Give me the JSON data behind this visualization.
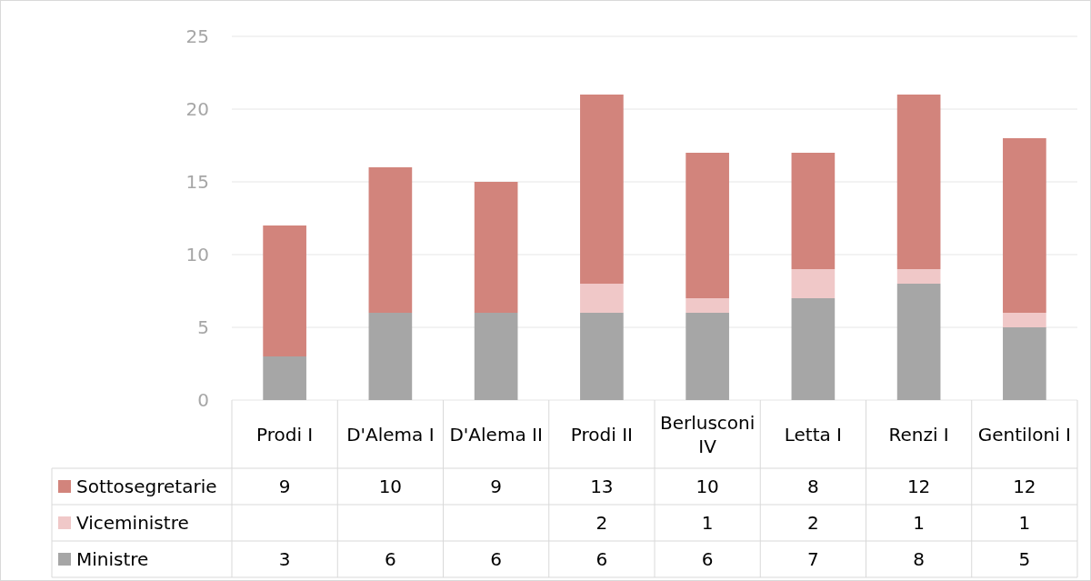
{
  "chart_data": {
    "type": "bar",
    "stacked": true,
    "categories": [
      "Prodi I",
      "D'Alema I",
      "D'Alema II",
      "Prodi II",
      "Berlusconi IV",
      "Letta I",
      "Renzi I",
      "Gentiloni I"
    ],
    "series": [
      {
        "name": "Ministre",
        "color": "#a6a6a6",
        "values": [
          3,
          6,
          6,
          6,
          6,
          7,
          8,
          5
        ]
      },
      {
        "name": "Viceministre",
        "color": "#f0c8c8",
        "values": [
          null,
          null,
          null,
          2,
          1,
          2,
          1,
          1
        ]
      },
      {
        "name": "Sottosegretarie",
        "color": "#d2847c",
        "values": [
          9,
          10,
          9,
          13,
          10,
          8,
          12,
          12
        ]
      }
    ],
    "ylim": [
      0,
      25
    ],
    "yticks": [
      0,
      5,
      10,
      15,
      20,
      25
    ],
    "grid": "y",
    "data_labels": true,
    "legend": "bottom"
  }
}
